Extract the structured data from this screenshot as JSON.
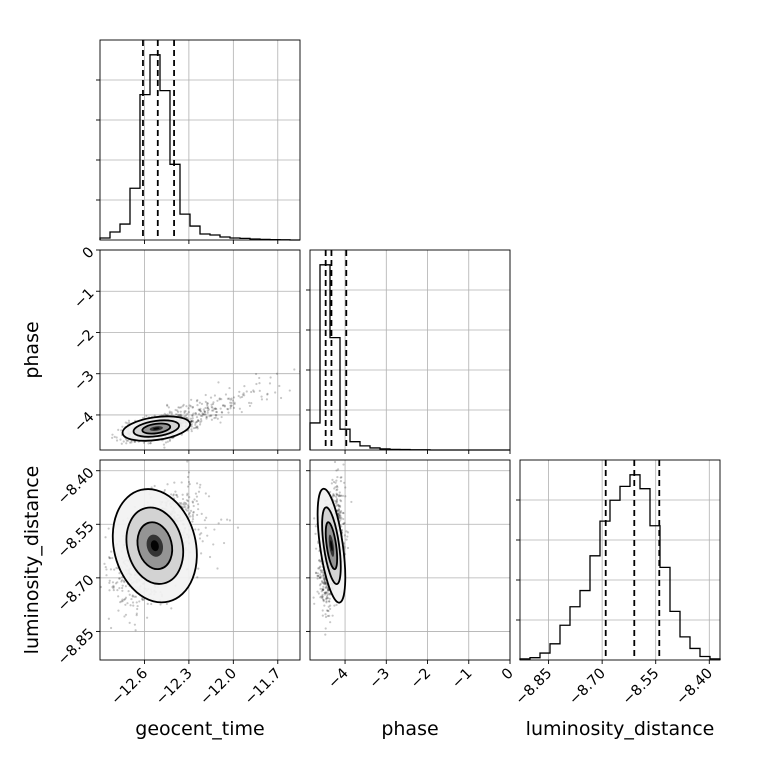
{
  "chart_data": {
    "type": "corner",
    "parameters": [
      {
        "key": "t",
        "name": "geocent_time",
        "range": [
          -12.9,
          -11.55
        ],
        "ticks": [
          -12.6,
          -12.3,
          -12.0,
          -11.7
        ],
        "tick_labels": [
          "−12.6",
          "−12.3",
          "−12.0",
          "−11.7"
        ],
        "hist_bins": [
          -12.9,
          -12.8325,
          -12.765,
          -12.6975,
          -12.63,
          -12.5625,
          -12.495,
          -12.4275,
          -12.36,
          -12.2925,
          -12.225,
          -12.1575,
          -12.09,
          -12.0225,
          -11.955,
          -11.8875,
          -11.82,
          -11.7525,
          -11.685,
          -11.6175,
          -11.55
        ],
        "hist_counts": [
          0.01,
          0.04,
          0.08,
          0.26,
          0.73,
          0.93,
          0.75,
          0.38,
          0.13,
          0.07,
          0.03,
          0.025,
          0.015,
          0.01,
          0.008,
          0.005,
          0.003,
          0.002,
          0.001,
          0.0
        ],
        "quantiles": [
          -12.61,
          -12.51,
          -12.4
        ]
      },
      {
        "key": "p",
        "name": "phase",
        "range": [
          -4.85,
          0.0
        ],
        "ticks": [
          -4,
          -3,
          -2,
          -1,
          0
        ],
        "tick_labels": [
          "−4",
          "−3",
          "−2",
          "−1",
          "0"
        ],
        "hist_bins": [
          -4.85,
          -4.6075,
          -4.365,
          -4.1225,
          -3.88,
          -3.6375,
          -3.395,
          -3.1525,
          -2.91,
          -2.6675,
          -2.425,
          -2.1825,
          -1.94,
          -1.6975,
          -1.455,
          -1.2125,
          -0.97,
          -0.7275,
          -0.485,
          -0.2425,
          0.0
        ],
        "hist_counts": [
          0.13,
          0.89,
          0.54,
          0.1,
          0.04,
          0.02,
          0.01,
          0.005,
          0.003,
          0.002,
          0.001,
          0.001,
          0.0,
          0.0,
          0.0,
          0.0,
          0.0,
          0.0,
          0.0,
          0.0
        ],
        "quantiles": [
          -4.47,
          -4.33,
          -3.97
        ]
      },
      {
        "key": "d",
        "name": "luminosity_distance",
        "range": [
          -8.93,
          -8.37
        ],
        "ticks": [
          -8.85,
          -8.7,
          -8.55,
          -8.4
        ],
        "tick_labels": [
          "−8.85",
          "−8.70",
          "−8.55",
          "−8.40"
        ],
        "hist_bins": [
          -8.93,
          -8.902,
          -8.874,
          -8.846,
          -8.818,
          -8.79,
          -8.762,
          -8.734,
          -8.706,
          -8.678,
          -8.65,
          -8.622,
          -8.594,
          -8.566,
          -8.538,
          -8.51,
          -8.482,
          -8.454,
          -8.426,
          -8.398,
          -8.37
        ],
        "hist_counts": [
          0.005,
          0.01,
          0.03,
          0.07,
          0.15,
          0.23,
          0.3,
          0.45,
          0.6,
          0.69,
          0.75,
          0.8,
          0.74,
          0.58,
          0.4,
          0.21,
          0.1,
          0.05,
          0.015,
          0.005
        ],
        "quantiles": [
          -8.69,
          -8.61,
          -8.54
        ]
      }
    ],
    "scatter_density": {
      "t_p": {
        "center": [
          -12.52,
          -4.33
        ],
        "spread": [
          0.1,
          0.12
        ],
        "tail_slope": 3.3,
        "n_points": 1400
      },
      "t_d": {
        "center": [
          -12.53,
          -8.61
        ],
        "spread": [
          0.12,
          0.07
        ],
        "correlation": 0.55,
        "n_points": 1400
      },
      "p_d": {
        "center": [
          -4.33,
          -8.61
        ],
        "spread": [
          0.12,
          0.07
        ],
        "correlation": 0.35,
        "n_points": 1400
      }
    },
    "grid": true,
    "xlabel_bottom": [
      "geocent_time",
      "phase",
      "luminosity_distance"
    ],
    "ylabel_left": [
      "phase",
      "luminosity_distance"
    ]
  }
}
